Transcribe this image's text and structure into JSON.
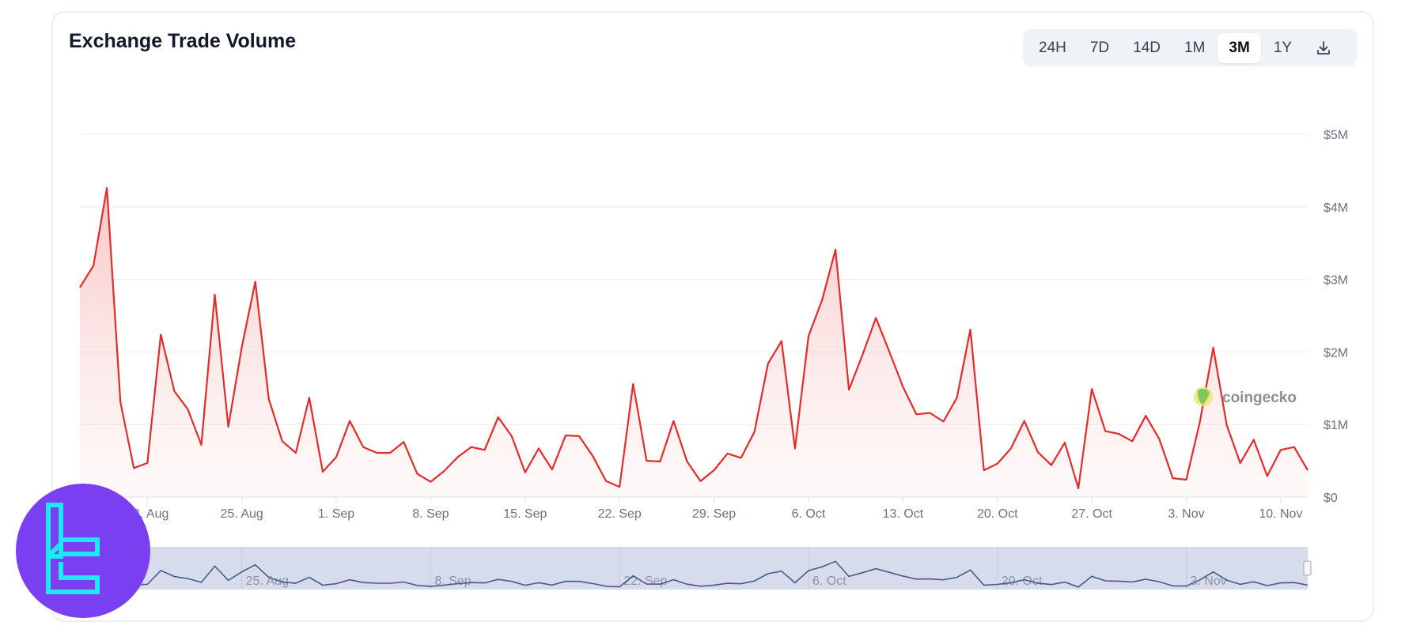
{
  "header": {
    "title": "Exchange Trade Volume"
  },
  "range_buttons": [
    {
      "label": "24H",
      "active": false
    },
    {
      "label": "7D",
      "active": false
    },
    {
      "label": "14D",
      "active": false
    },
    {
      "label": "1M",
      "active": false
    },
    {
      "label": "3M",
      "active": true
    },
    {
      "label": "1Y",
      "active": false
    }
  ],
  "download_icon": "download-icon",
  "watermark": {
    "text": "coingecko",
    "icon": "gecko-logo-icon"
  },
  "colors": {
    "line": "#e32b2b",
    "fill": "#f9d4d4",
    "navigator_bg": "#d6dceb",
    "navigator_line": "#4b5a85",
    "logo_bg": "#7b3ff2",
    "logo_fg": "#1ee8f5"
  },
  "chart_data": {
    "type": "area",
    "title": "",
    "xlabel": "",
    "ylabel": "",
    "ylim": [
      0,
      5000000
    ],
    "grid": true,
    "y_ticks": [
      "$0",
      "$1M",
      "$2M",
      "$3M",
      "$4M",
      "$5M"
    ],
    "x_ticks": [
      "18. Aug",
      "25. Aug",
      "1. Sep",
      "8. Sep",
      "15. Sep",
      "22. Sep",
      "29. Sep",
      "6. Oct",
      "13. Oct",
      "20. Oct",
      "27. Oct",
      "3. Nov",
      "10. Nov"
    ],
    "navigator_ticks": [
      "25. Aug",
      "8. Sep",
      "22. Sep",
      "6. Oct",
      "20. Oct",
      "3. Nov"
    ],
    "x": [
      "13. Aug",
      "14. Aug",
      "15. Aug",
      "16. Aug",
      "17. Aug",
      "18. Aug",
      "19. Aug",
      "20. Aug",
      "21. Aug",
      "22. Aug",
      "23. Aug",
      "24. Aug",
      "25. Aug",
      "26. Aug",
      "27. Aug",
      "28. Aug",
      "29. Aug",
      "30. Aug",
      "31. Aug",
      "1. Sep",
      "2. Sep",
      "3. Sep",
      "4. Sep",
      "5. Sep",
      "6. Sep",
      "7. Sep",
      "8. Sep",
      "9. Sep",
      "10. Sep",
      "11. Sep",
      "12. Sep",
      "13. Sep",
      "14. Sep",
      "15. Sep",
      "16. Sep",
      "17. Sep",
      "18. Sep",
      "19. Sep",
      "20. Sep",
      "21. Sep",
      "22. Sep",
      "23. Sep",
      "24. Sep",
      "25. Sep",
      "26. Sep",
      "27. Sep",
      "28. Sep",
      "29. Sep",
      "30. Sep",
      "1. Oct",
      "2. Oct",
      "3. Oct",
      "4. Oct",
      "5. Oct",
      "6. Oct",
      "7. Oct",
      "8. Oct",
      "9. Oct",
      "10. Oct",
      "11. Oct",
      "12. Oct",
      "13. Oct",
      "14. Oct",
      "15. Oct",
      "16. Oct",
      "17. Oct",
      "18. Oct",
      "19. Oct",
      "20. Oct",
      "21. Oct",
      "22. Oct",
      "23. Oct",
      "24. Oct",
      "25. Oct",
      "26. Oct",
      "27. Oct",
      "28. Oct",
      "29. Oct",
      "30. Oct",
      "31. Oct",
      "1. Nov",
      "2. Nov",
      "3. Nov",
      "4. Nov",
      "5. Nov",
      "6. Nov",
      "7. Nov",
      "8. Nov",
      "9. Nov",
      "10. Nov",
      "11. Nov",
      "12. Nov"
    ],
    "values": [
      2890000,
      3190000,
      4260000,
      1310000,
      400000,
      470000,
      2240000,
      1460000,
      1210000,
      720000,
      2790000,
      970000,
      2070000,
      2970000,
      1350000,
      770000,
      610000,
      1370000,
      350000,
      550000,
      1050000,
      690000,
      610000,
      610000,
      760000,
      320000,
      210000,
      360000,
      550000,
      690000,
      650000,
      1100000,
      840000,
      340000,
      670000,
      380000,
      850000,
      840000,
      570000,
      220000,
      140000,
      1560000,
      500000,
      490000,
      1050000,
      490000,
      220000,
      370000,
      600000,
      540000,
      900000,
      1840000,
      2150000,
      670000,
      2220000,
      2710000,
      3410000,
      1480000,
      1960000,
      2470000,
      2000000,
      1520000,
      1140000,
      1160000,
      1040000,
      1370000,
      2310000,
      370000,
      460000,
      670000,
      1050000,
      620000,
      440000,
      750000,
      120000,
      1490000,
      910000,
      870000,
      770000,
      1120000,
      800000,
      260000,
      240000,
      1030000,
      2060000,
      990000,
      470000,
      790000,
      290000,
      650000,
      690000,
      370000
    ]
  }
}
